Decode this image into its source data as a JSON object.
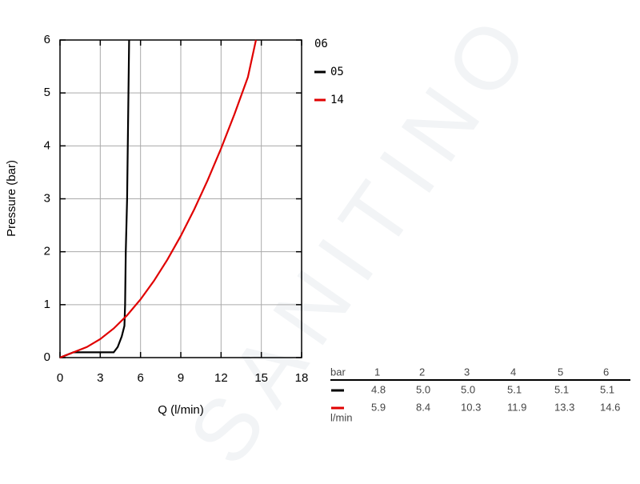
{
  "chart_data": {
    "type": "line",
    "xlabel": "Q (l/min)",
    "ylabel": "Pressure (bar)",
    "legend_title": "06",
    "xlim": [
      0,
      18
    ],
    "xticks": [
      0,
      3,
      6,
      9,
      12,
      15,
      18
    ],
    "ylim": [
      0,
      6
    ],
    "yticks": [
      0,
      1,
      2,
      3,
      4,
      5,
      6
    ],
    "grid": true,
    "series": [
      {
        "name": "05",
        "color": "#000000",
        "x": [
          0,
          0.5,
          1,
          3,
          4,
          4.3,
          4.6,
          4.8,
          4.85,
          4.9,
          5.0,
          5.05,
          5.1,
          5.15
        ],
        "values": [
          0,
          0.05,
          0.1,
          0.1,
          0.1,
          0.2,
          0.4,
          0.6,
          1,
          2,
          3,
          4,
          5,
          6
        ]
      },
      {
        "name": "14",
        "color": "#e00000",
        "x": [
          0,
          1,
          2,
          3,
          4,
          5,
          6,
          7,
          8,
          9,
          10,
          11,
          12,
          13,
          14,
          14.6
        ],
        "values": [
          0,
          0.1,
          0.2,
          0.35,
          0.55,
          0.8,
          1.1,
          1.45,
          1.85,
          2.3,
          2.8,
          3.35,
          3.95,
          4.6,
          5.3,
          6
        ]
      }
    ]
  },
  "table": {
    "header": [
      "bar",
      "1",
      "2",
      "3",
      "4",
      "5",
      "6"
    ],
    "rows": [
      {
        "color": "#000000",
        "cells": [
          "4.8",
          "5.0",
          "5.0",
          "5.1",
          "5.1",
          "5.1"
        ]
      },
      {
        "color": "#e00000",
        "cells": [
          "5.9",
          "8.4",
          "10.3",
          "11.9",
          "13.3",
          "14.6"
        ]
      }
    ],
    "unit": "l/min"
  },
  "watermark": "SANITINO"
}
